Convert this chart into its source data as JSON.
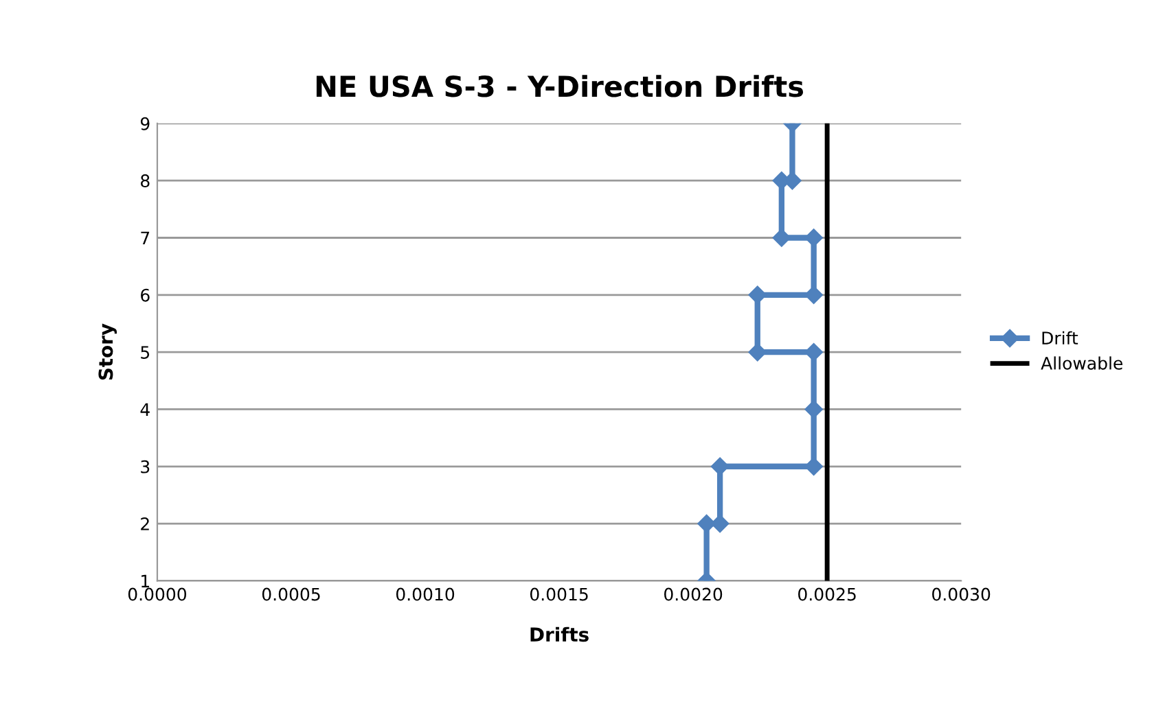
{
  "chart_data": {
    "type": "line",
    "title": "NE USA S-3 - Y-Direction Drifts",
    "xlabel": "Drifts",
    "ylabel": "Story",
    "series": [
      {
        "name": "Drift",
        "color": "#4f81bd",
        "marker": "diamond",
        "x": [
          0.00205,
          0.00205,
          0.0021,
          0.0021,
          0.00245,
          0.00245,
          0.00245,
          0.00224,
          0.00224,
          0.00245,
          0.00245,
          0.00233,
          0.00233,
          0.00237,
          0.00237
        ],
        "values": [
          1,
          2,
          2,
          3,
          3,
          4,
          5,
          5,
          6,
          6,
          7,
          7,
          8,
          8,
          9
        ]
      },
      {
        "name": "Allowable",
        "color": "#000000",
        "marker": "none",
        "x": [
          0.0025,
          0.0025
        ],
        "values": [
          1,
          9
        ]
      }
    ],
    "xlim": [
      0,
      0.003
    ],
    "xticks": [
      {
        "value": 0,
        "label": "0.0000"
      },
      {
        "value": 0.0005,
        "label": "0.0005"
      },
      {
        "value": 0.001,
        "label": "0.0010"
      },
      {
        "value": 0.0015,
        "label": "0.0015"
      },
      {
        "value": 0.002,
        "label": "0.0020"
      },
      {
        "value": 0.0025,
        "label": "0.0025"
      },
      {
        "value": 0.003,
        "label": "0.0030"
      }
    ],
    "ylim": [
      1,
      9
    ],
    "yticks": [
      1,
      2,
      3,
      4,
      5,
      6,
      7,
      8,
      9
    ],
    "grid": "y",
    "legend": "right"
  }
}
